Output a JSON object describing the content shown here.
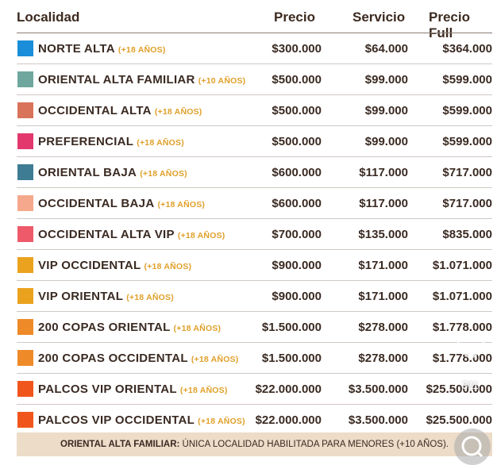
{
  "header": {
    "localidad": "Localidad",
    "precio": "Precio",
    "servicio": "Servicio",
    "precio_full": "Precio Full"
  },
  "rows": [
    {
      "name": "NORTE ALTA",
      "age": "(+18 AÑOS)",
      "color": "#1a8ed8",
      "precio": "$300.000",
      "servicio": "$64.000",
      "full": "$364.000"
    },
    {
      "name": "ORIENTAL ALTA FAMILIAR",
      "age": "(+10 AÑOS)",
      "color": "#6fa79e",
      "precio": "$500.000",
      "servicio": "$99.000",
      "full": "$599.000"
    },
    {
      "name": "OCCIDENTAL ALTA",
      "age": "(+18 AÑOS)",
      "color": "#d9735a",
      "precio": "$500.000",
      "servicio": "$99.000",
      "full": "$599.000"
    },
    {
      "name": "PREFERENCIAL",
      "age": "(+18 AÑOS)",
      "color": "#e2386e",
      "precio": "$500.000",
      "servicio": "$99.000",
      "full": "$599.000"
    },
    {
      "name": "ORIENTAL BAJA",
      "age": "(+18 AÑOS)",
      "color": "#3d7c93",
      "precio": "$600.000",
      "servicio": "$117.000",
      "full": "$717.000"
    },
    {
      "name": "OCCIDENTAL BAJA",
      "age": "(+18 AÑOS)",
      "color": "#f5a88c",
      "precio": "$600.000",
      "servicio": "$117.000",
      "full": "$717.000"
    },
    {
      "name": "OCCIDENTAL ALTA VIP",
      "age": "(+18 AÑOS)",
      "color": "#ee5a6a",
      "precio": "$700.000",
      "servicio": "$135.000",
      "full": "$835.000"
    },
    {
      "name": "VIP OCCIDENTAL",
      "age": "(+18 AÑOS)",
      "color": "#eba21e",
      "precio": "$900.000",
      "servicio": "$171.000",
      "full": "$1.071.000"
    },
    {
      "name": "VIP ORIENTAL",
      "age": "(+18 AÑOS)",
      "color": "#eaa21e",
      "precio": "$900.000",
      "servicio": "$171.000",
      "full": "$1.071.000"
    },
    {
      "name": "200 COPAS ORIENTAL",
      "age": "(+18 AÑOS)",
      "color": "#ee8a28",
      "precio": "$1.500.000",
      "servicio": "$278.000",
      "full": "$1.778.000"
    },
    {
      "name": "200 COPAS OCCIDENTAL",
      "age": "(+18 AÑOS)",
      "color": "#ee8a28",
      "precio": "$1.500.000",
      "servicio": "$278.000",
      "full": "$1.778.000"
    },
    {
      "name": "PALCOS VIP ORIENTAL",
      "age": "(+18 AÑOS)",
      "color": "#f0561c",
      "precio": "$22.000.000",
      "servicio": "$3.500.000",
      "full": "$25.500.000"
    },
    {
      "name": "PALCOS VIP OCCIDENTAL",
      "age": "(+18 AÑOS)",
      "color": "#f0561c",
      "precio": "$22.000.000",
      "servicio": "$3.500.000",
      "full": "$25.500.000"
    }
  ],
  "note": {
    "bold": "ORIENTAL ALTA FAMILIAR:",
    "text": " ÚNICA LOCALIDAD HABILITADA PARA MENORES (+10 AÑOS)."
  },
  "overlay": {
    "like_count": "311"
  },
  "icons": {
    "heart": "heart-icon",
    "chat": "chat-icon"
  }
}
